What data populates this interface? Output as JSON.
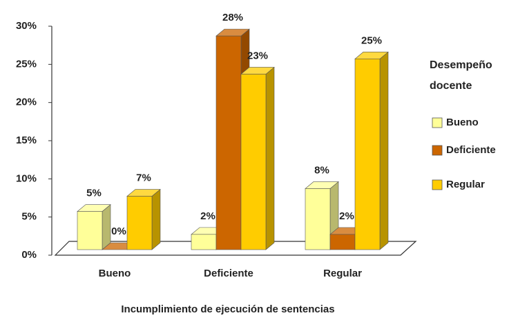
{
  "chart_data": {
    "type": "bar3d",
    "x_label": "Incumplimiento de ejecución de sentencias",
    "legend_title": "Desempeño docente",
    "legend_position": "right",
    "categories": [
      "Bueno",
      "Deficiente",
      "Regular"
    ],
    "series": [
      {
        "name": "Bueno",
        "color": "#ffff99",
        "values": [
          5,
          2,
          8
        ],
        "value_labels": [
          "5%",
          "2%",
          "8%"
        ]
      },
      {
        "name": "Deficiente",
        "color": "#cc6600",
        "values": [
          0,
          28,
          2
        ],
        "value_labels": [
          "0%",
          "28%",
          "2%"
        ]
      },
      {
        "name": "Regular",
        "color": "#ffcc00",
        "values": [
          7,
          23,
          25
        ],
        "value_labels": [
          "7%",
          "23%",
          "25%"
        ]
      }
    ],
    "ylim": [
      0,
      30
    ],
    "yticks": [
      {
        "value": 0,
        "label": "0%"
      },
      {
        "value": 5,
        "label": "5%"
      },
      {
        "value": 10,
        "label": "10%"
      },
      {
        "value": 15,
        "label": "15%"
      },
      {
        "value": 20,
        "label": "20%"
      },
      {
        "value": 25,
        "label": "25%"
      },
      {
        "value": 30,
        "label": "30%"
      }
    ]
  }
}
